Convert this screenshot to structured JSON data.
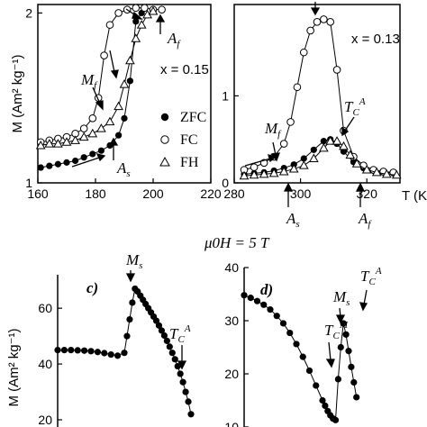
{
  "chart_data": [
    {
      "panel": "a",
      "type": "scatter",
      "xlim": [
        160,
        220
      ],
      "ylim": [
        1,
        2.05
      ],
      "xticks": [
        "160",
        "180",
        "200",
        "220"
      ],
      "yticks": [
        "1",
        "2"
      ],
      "ylabel": "M (Am² kg⁻¹)",
      "annotations": {
        "x": "x = 0.15",
        "Mf": "Mf",
        "Af": "Af",
        "As": "As"
      },
      "legend": [
        "ZFC",
        "FC",
        "FH"
      ],
      "series": [
        {
          "name": "ZFC",
          "marker": "filled-circle",
          "x": [
            161,
            164,
            167,
            170,
            173,
            176,
            179,
            182,
            185,
            188,
            190,
            192,
            194,
            196
          ],
          "y": [
            1.09,
            1.1,
            1.11,
            1.12,
            1.13,
            1.15,
            1.17,
            1.19,
            1.22,
            1.28,
            1.38,
            1.6,
            1.95,
            2.0
          ]
        },
        {
          "name": "FC",
          "marker": "open-circle",
          "x": [
            161,
            164,
            167,
            170,
            173,
            176,
            179,
            181,
            183,
            185,
            188,
            191,
            194,
            197,
            200,
            203
          ],
          "y": [
            1.24,
            1.25,
            1.26,
            1.27,
            1.29,
            1.32,
            1.38,
            1.5,
            1.75,
            1.93,
            2.0,
            2.02,
            2.03,
            2.03,
            2.02,
            2.02
          ]
        },
        {
          "name": "FH",
          "marker": "open-triangle",
          "x": [
            161,
            164,
            167,
            170,
            173,
            176,
            179,
            182,
            185,
            188,
            190,
            192,
            194,
            196,
            198,
            200
          ],
          "y": [
            1.22,
            1.23,
            1.23,
            1.24,
            1.25,
            1.27,
            1.29,
            1.32,
            1.36,
            1.45,
            1.58,
            1.72,
            1.85,
            1.93,
            1.99,
            2.01
          ]
        }
      ]
    },
    {
      "panel": "b",
      "type": "scatter",
      "xlim": [
        280,
        330
      ],
      "ylim": [
        0,
        2.05
      ],
      "xticks": [
        "280",
        "300",
        "320"
      ],
      "yticks": [
        "0",
        "1"
      ],
      "xlabel": "T (K)",
      "annotations": {
        "x": "x = 0.13",
        "Mf": "Mf",
        "As": "As",
        "Af": "Af",
        "TC": "TCA"
      },
      "series": [
        {
          "name": "ZFC",
          "marker": "filled-circle",
          "x": [
            283,
            286,
            289,
            292,
            295,
            298,
            301,
            304,
            307,
            309,
            311,
            313,
            316,
            319,
            322,
            325,
            328
          ],
          "y": [
            0.1,
            0.11,
            0.12,
            0.14,
            0.17,
            0.21,
            0.28,
            0.38,
            0.48,
            0.5,
            0.45,
            0.36,
            0.24,
            0.17,
            0.14,
            0.12,
            0.11
          ]
        },
        {
          "name": "FC",
          "marker": "open-circle",
          "x": [
            283,
            286,
            289,
            292,
            295,
            297,
            299,
            301,
            303,
            305,
            307,
            309,
            311,
            313,
            316,
            319,
            322,
            325,
            328
          ],
          "y": [
            0.15,
            0.18,
            0.23,
            0.3,
            0.45,
            0.7,
            1.1,
            1.5,
            1.75,
            1.85,
            1.88,
            1.85,
            1.3,
            0.6,
            0.3,
            0.2,
            0.15,
            0.13,
            0.12
          ]
        },
        {
          "name": "FH",
          "marker": "open-triangle",
          "x": [
            283,
            286,
            289,
            292,
            295,
            298,
            301,
            304,
            307,
            309,
            311,
            313,
            315,
            317,
            320,
            323,
            326,
            329
          ],
          "y": [
            0.08,
            0.09,
            0.1,
            0.11,
            0.13,
            0.16,
            0.2,
            0.28,
            0.4,
            0.48,
            0.48,
            0.42,
            0.32,
            0.22,
            0.15,
            0.12,
            0.1,
            0.09
          ]
        }
      ]
    },
    {
      "panel": "c",
      "type": "scatter",
      "xlim": [
        0,
        100
      ],
      "ylim": [
        20,
        72
      ],
      "yticks": [
        "20",
        "40",
        "60"
      ],
      "ylabel": "M (Am² kg⁻¹)",
      "annotations": {
        "label": "c)",
        "Ms": "Ms",
        "TC": "TCA"
      },
      "series": [
        {
          "name": "M(T)",
          "marker": "filled-circle",
          "x": [
            0,
            5,
            10,
            15,
            20,
            25,
            30,
            35,
            40,
            45,
            50,
            52,
            54,
            56,
            58,
            60,
            62,
            64,
            66,
            68,
            70,
            72,
            74,
            76,
            78,
            80,
            82,
            84,
            86,
            88,
            90,
            92,
            94,
            96,
            98,
            100
          ],
          "y": [
            45,
            45,
            45,
            44.9,
            44.8,
            44.6,
            44.3,
            43.9,
            43.4,
            43,
            44,
            50,
            56,
            62,
            67,
            66,
            64.5,
            63,
            61.5,
            60,
            58.5,
            57,
            55.5,
            53.8,
            52,
            50.2,
            48.3,
            46.2,
            44,
            41.7,
            39.2,
            36.5,
            33.5,
            30,
            26.5,
            22
          ]
        }
      ]
    },
    {
      "panel": "d",
      "type": "scatter",
      "xlim": [
        0,
        100
      ],
      "ylim": [
        10,
        40
      ],
      "yticks": [
        "10",
        "20",
        "30",
        "40"
      ],
      "annotations": {
        "label": "d)",
        "field": "μ0H = 5 T",
        "Ms": "Ms",
        "TM": "TCM",
        "TC": "TCA"
      },
      "series": [
        {
          "name": "M(T)",
          "marker": "filled-circle",
          "x": [
            0,
            5,
            10,
            15,
            20,
            25,
            30,
            35,
            40,
            45,
            50,
            55,
            60,
            62,
            64,
            66,
            68,
            70,
            72,
            74,
            76,
            78,
            80,
            82,
            84,
            86
          ],
          "y": [
            34.8,
            34.3,
            33.7,
            33,
            32.1,
            30.9,
            29.5,
            27.7,
            25.6,
            23.2,
            20.6,
            17.8,
            15,
            14,
            13,
            12.2,
            11.6,
            11.3,
            19,
            25,
            29.5,
            27.4,
            24.3,
            21.3,
            18.4,
            15.6
          ]
        }
      ]
    }
  ],
  "labels": {
    "a_ylabel": "M (Am² kg⁻¹)",
    "c_ylabel": "M (Am² kg⁻¹)",
    "b_xlabel": "T (K)",
    "legend_zfc": "ZFC",
    "legend_fc": "FC",
    "legend_fh": "FH",
    "x015": "x = 0.15",
    "x013": "x = 0.13",
    "field": "μ0H = 5 T",
    "c_label": "c)",
    "d_label": "d)"
  }
}
